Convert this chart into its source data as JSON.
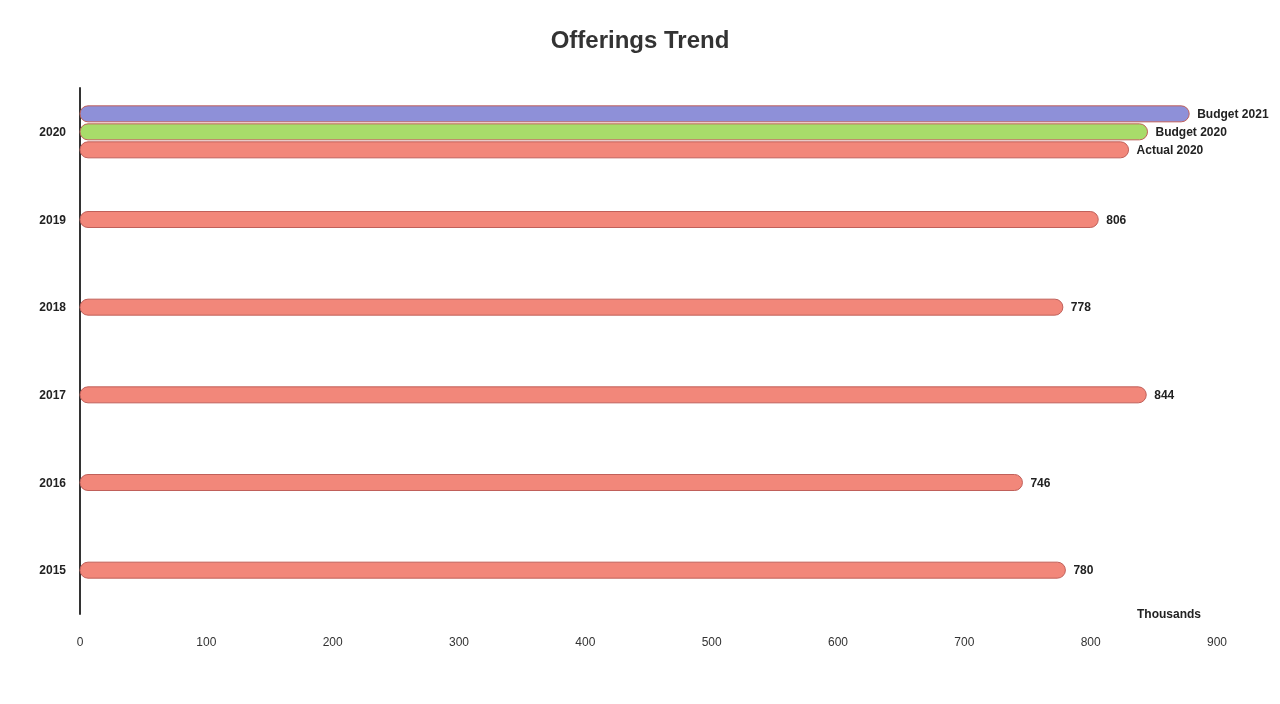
{
  "chart_data": {
    "type": "bar",
    "orientation": "horizontal",
    "title": "Offerings Trend",
    "xlabel": "Thousands",
    "categories": [
      "2020",
      "2019",
      "2018",
      "2017",
      "2016",
      "2015"
    ],
    "series": [
      {
        "color": "#8e90d8",
        "values": [
          878,
          null,
          null,
          null,
          null,
          null
        ],
        "value_labels": [
          "Budget 2021",
          null,
          null,
          null,
          null,
          null
        ]
      },
      {
        "color": "#a8dc6a",
        "values": [
          845,
          null,
          null,
          null,
          null,
          null
        ],
        "value_labels": [
          "Budget 2020",
          null,
          null,
          null,
          null,
          null
        ]
      },
      {
        "color": "#f2877a",
        "values": [
          830,
          806,
          778,
          844,
          746,
          780
        ],
        "value_labels": [
          "Actual 2020",
          "806",
          "778",
          "844",
          "746",
          "780"
        ]
      }
    ],
    "xlim": [
      0,
      900
    ],
    "xticks": [
      0,
      100,
      200,
      300,
      400,
      500,
      600,
      700,
      800,
      900
    ],
    "grid": false
  }
}
